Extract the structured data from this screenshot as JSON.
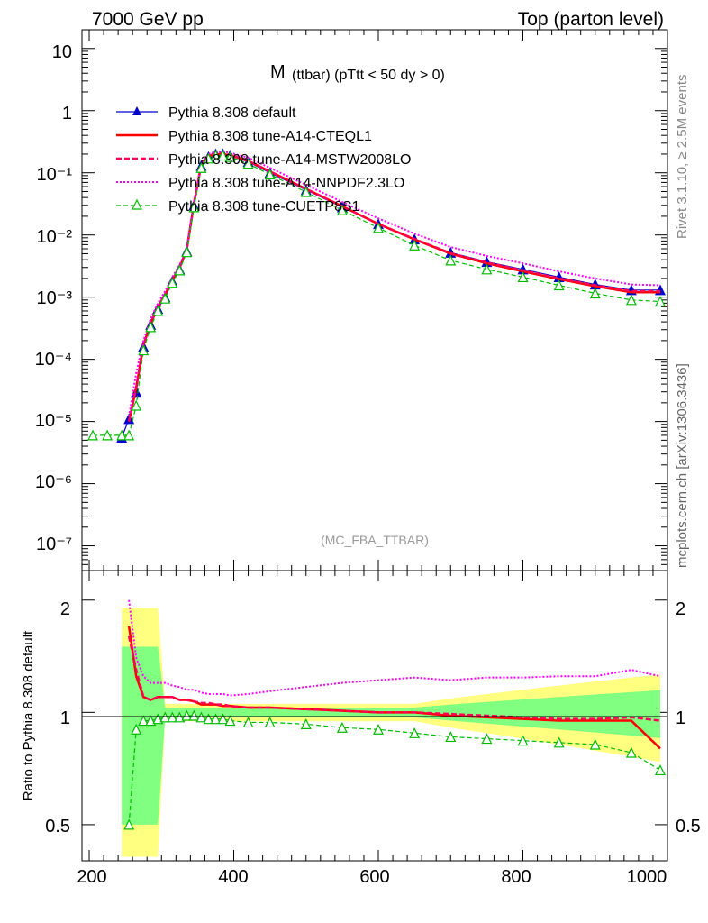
{
  "header": {
    "left": "7000 GeV pp",
    "right": "Top (parton level)"
  },
  "side": {
    "rivet": "Rivet 3.1.10, ≥ 2.5M events",
    "mcplots": "mcplots.cern.ch [arXiv:1306.3436]"
  },
  "plot_title": {
    "main": "M",
    "sub": "(ttbar) (pTtt < 50 dy > 0)"
  },
  "watermark": "(MC_FBA_TTBAR)",
  "ratio_ylabel": "Ratio to Pythia 8.308 default",
  "colors": {
    "default": "#0000cc",
    "cteql1": "#ff0000",
    "mstw": "#ff0055",
    "nnpdf": "#ff00ff",
    "cuetp8s1": "#00bb00",
    "band_yellow": "#ffff80",
    "band_green": "#80ff80"
  },
  "chart_data": [
    {
      "type": "line",
      "yscale": "log",
      "xlim": [
        190,
        1000
      ],
      "ylim": [
        4e-08,
        20
      ],
      "yticks": [
        "10",
        "1",
        "10⁻¹",
        "10⁻²",
        "10⁻³",
        "10⁻⁴",
        "10⁻⁵",
        "10⁻⁶",
        "10⁻⁷"
      ],
      "legend_placement": "top-left",
      "series": [
        {
          "name": "Pythia 8.308 default",
          "x": [
            245,
            255,
            265,
            275,
            285,
            295,
            305,
            315,
            325,
            335,
            345,
            355,
            365,
            375,
            385,
            395,
            420,
            450,
            500,
            550,
            600,
            650,
            700,
            750,
            800,
            850,
            900,
            950,
            990
          ],
          "y": [
            5.5e-06,
            1.1e-05,
            3e-05,
            0.00016,
            0.00036,
            0.00065,
            0.001,
            0.0018,
            0.0028,
            0.0055,
            0.03,
            0.13,
            0.18,
            0.2,
            0.2,
            0.19,
            0.15,
            0.1,
            0.053,
            0.028,
            0.015,
            0.0085,
            0.0052,
            0.0037,
            0.0028,
            0.0021,
            0.0016,
            0.0013,
            0.0013
          ]
        },
        {
          "name": "Pythia 8.308 tune-A14-CTEQL1",
          "x": [
            255,
            265,
            275,
            285,
            295,
            305,
            315,
            325,
            335,
            345,
            355,
            365,
            375,
            385,
            395,
            420,
            450,
            500,
            550,
            600,
            650,
            700,
            750,
            800,
            850,
            900,
            950,
            990
          ],
          "y": [
            1e-05,
            3.5e-05,
            0.00017,
            0.00038,
            0.0007,
            0.0011,
            0.0019,
            0.003,
            0.0058,
            0.032,
            0.135,
            0.185,
            0.2,
            0.2,
            0.19,
            0.155,
            0.105,
            0.055,
            0.029,
            0.015,
            0.0085,
            0.005,
            0.0035,
            0.0026,
            0.00195,
            0.0015,
            0.0012,
            0.0012
          ]
        },
        {
          "name": "Pythia 8.308 tune-A14-MSTW2008LO",
          "x": [
            255,
            265,
            275,
            285,
            295,
            305,
            315,
            325,
            335,
            345,
            355,
            365,
            375,
            385,
            395,
            420,
            450,
            500,
            550,
            600,
            650,
            700,
            750,
            800,
            850,
            900,
            950,
            990
          ],
          "y": [
            1e-05,
            3.5e-05,
            0.00017,
            0.00039,
            0.0007,
            0.0011,
            0.0019,
            0.003,
            0.0058,
            0.032,
            0.135,
            0.19,
            0.205,
            0.205,
            0.195,
            0.155,
            0.105,
            0.055,
            0.029,
            0.015,
            0.0086,
            0.0051,
            0.0036,
            0.0027,
            0.002,
            0.00155,
            0.00125,
            0.00125
          ]
        },
        {
          "name": "Pythia 8.308 tune-A14-NNPDF2.3LO",
          "x": [
            255,
            265,
            275,
            285,
            295,
            305,
            315,
            325,
            335,
            345,
            355,
            365,
            375,
            385,
            395,
            420,
            450,
            500,
            550,
            600,
            650,
            700,
            750,
            800,
            850,
            900,
            950,
            990
          ],
          "y": [
            1.2e-05,
            6e-05,
            0.0002,
            0.00045,
            0.0008,
            0.00125,
            0.0021,
            0.0033,
            0.0063,
            0.035,
            0.14,
            0.2,
            0.22,
            0.22,
            0.21,
            0.175,
            0.12,
            0.064,
            0.034,
            0.0185,
            0.0105,
            0.0064,
            0.0046,
            0.0035,
            0.0026,
            0.002,
            0.0016,
            0.00155
          ]
        },
        {
          "name": "Pythia 8.308 tune-CUETP8S1",
          "x": [
            205,
            225,
            245,
            255,
            265,
            275,
            285,
            295,
            305,
            315,
            325,
            335,
            345,
            355,
            365,
            375,
            385,
            395,
            420,
            450,
            500,
            550,
            600,
            650,
            700,
            750,
            800,
            850,
            900,
            950,
            990
          ],
          "y": [
            6e-06,
            6e-06,
            6e-06,
            6e-06,
            1.8e-05,
            0.00014,
            0.00033,
            0.0006,
            0.00095,
            0.0017,
            0.0027,
            0.0053,
            0.028,
            0.12,
            0.17,
            0.19,
            0.19,
            0.18,
            0.14,
            0.094,
            0.049,
            0.025,
            0.013,
            0.0068,
            0.0039,
            0.0028,
            0.0021,
            0.00155,
            0.00115,
            0.0009,
            0.00085
          ]
        }
      ]
    },
    {
      "type": "line",
      "xlim": [
        190,
        1000
      ],
      "ylim": [
        0.4,
        2.4
      ],
      "xticks": [
        "200",
        "400",
        "600",
        "800",
        "1000"
      ],
      "ytick_labels": [
        "2",
        "1",
        "0.5"
      ],
      "series": [
        {
          "name": "Pythia 8.308 tune-A14-CTEQL1",
          "x": [
            255,
            265,
            275,
            285,
            295,
            305,
            315,
            325,
            335,
            345,
            355,
            365,
            375,
            385,
            395,
            420,
            450,
            500,
            550,
            600,
            650,
            700,
            750,
            800,
            850,
            900,
            950,
            990
          ],
          "y": [
            1.7,
            1.25,
            1.1,
            1.08,
            1.1,
            1.1,
            1.1,
            1.08,
            1.08,
            1.07,
            1.05,
            1.05,
            1.05,
            1.04,
            1.04,
            1.03,
            1.03,
            1.02,
            1.01,
            1.0,
            1.0,
            0.98,
            0.97,
            0.96,
            0.95,
            0.95,
            0.95,
            0.8
          ]
        },
        {
          "name": "Pythia 8.308 tune-A14-MSTW2008LO",
          "x": [
            255,
            265,
            275,
            285,
            295,
            305,
            315,
            325,
            335,
            345,
            355,
            365,
            375,
            385,
            395,
            420,
            450,
            500,
            550,
            600,
            650,
            700,
            750,
            800,
            850,
            900,
            950,
            990
          ],
          "y": [
            1.6,
            1.3,
            1.1,
            1.08,
            1.1,
            1.1,
            1.1,
            1.08,
            1.08,
            1.07,
            1.06,
            1.06,
            1.05,
            1.05,
            1.04,
            1.03,
            1.03,
            1.02,
            1.01,
            1.0,
            1.0,
            0.99,
            0.98,
            0.97,
            0.96,
            0.96,
            0.97,
            0.95
          ]
        },
        {
          "name": "Pythia 8.308 tune-A14-NNPDF2.3LO",
          "x": [
            255,
            265,
            275,
            285,
            295,
            305,
            315,
            325,
            335,
            345,
            355,
            365,
            375,
            385,
            395,
            420,
            450,
            500,
            550,
            600,
            650,
            700,
            750,
            800,
            850,
            900,
            950,
            990
          ],
          "y": [
            2.0,
            1.4,
            1.25,
            1.2,
            1.2,
            1.2,
            1.18,
            1.17,
            1.15,
            1.15,
            1.13,
            1.12,
            1.12,
            1.12,
            1.11,
            1.12,
            1.14,
            1.17,
            1.2,
            1.22,
            1.24,
            1.22,
            1.24,
            1.24,
            1.25,
            1.25,
            1.3,
            1.25
          ]
        },
        {
          "name": "Pythia 8.308 tune-CUETP8S1",
          "x": [
            255,
            265,
            275,
            285,
            295,
            305,
            315,
            325,
            335,
            345,
            355,
            365,
            375,
            385,
            395,
            420,
            450,
            500,
            550,
            600,
            650,
            700,
            750,
            800,
            850,
            900,
            950,
            990
          ],
          "y": [
            0.5,
            0.9,
            0.95,
            0.95,
            0.96,
            0.97,
            0.97,
            0.97,
            0.98,
            0.98,
            0.97,
            0.96,
            0.96,
            0.96,
            0.95,
            0.94,
            0.94,
            0.93,
            0.91,
            0.9,
            0.88,
            0.86,
            0.85,
            0.84,
            0.83,
            0.82,
            0.78,
            0.7
          ]
        }
      ]
    }
  ]
}
